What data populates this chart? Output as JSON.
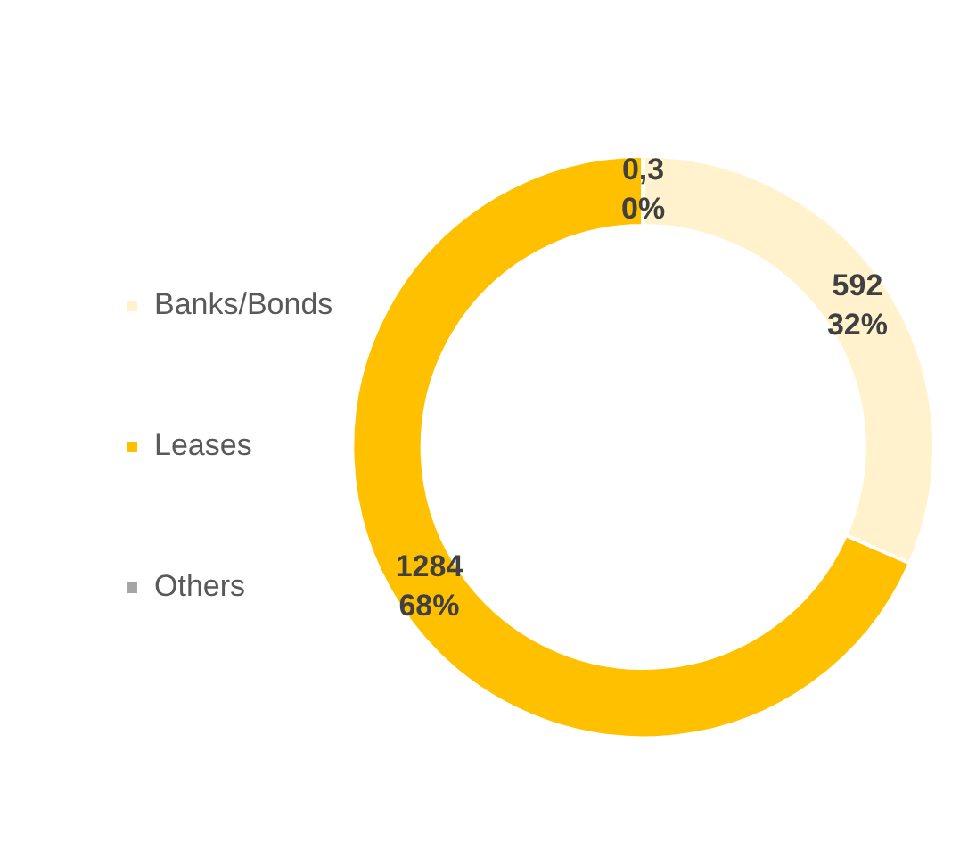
{
  "chart_data": {
    "type": "donut",
    "categories": [
      "Banks/Bonds",
      "Leases",
      "Others"
    ],
    "values": [
      592,
      1284,
      0.3
    ],
    "colors": [
      "#fff2cc",
      "#ffc000",
      "#a5a5a5"
    ],
    "value_labels": [
      "592\n32%",
      "1284\n68%",
      "0,3\n0%"
    ],
    "legend": "left"
  }
}
